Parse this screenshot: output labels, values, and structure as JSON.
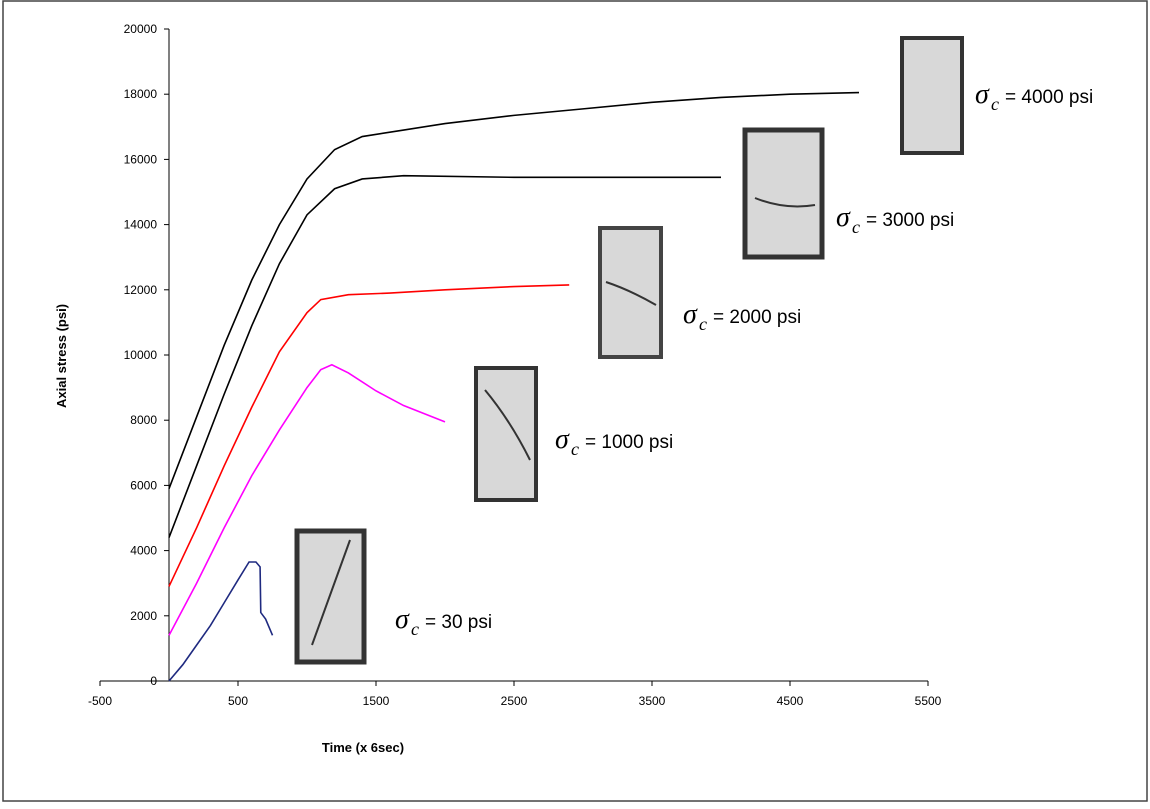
{
  "chart_data": {
    "type": "line",
    "xlabel": "Time (x 6sec)",
    "ylabel": "Axial stress (psi)",
    "label_symbol": "σ",
    "label_subscript": "c",
    "xlim": [
      -500,
      5500
    ],
    "xticks": [
      -500,
      500,
      1500,
      2500,
      3500,
      4500,
      5500
    ],
    "ylim": [
      0,
      20000
    ],
    "yticks": [
      0,
      2000,
      4000,
      6000,
      8000,
      10000,
      12000,
      14000,
      16000,
      18000,
      20000
    ],
    "series": [
      {
        "name": "= 4000 psi",
        "color": "#000000",
        "x": [
          0,
          200,
          400,
          600,
          800,
          1000,
          1200,
          1400,
          1700,
          2000,
          2500,
          3000,
          3500,
          4000,
          4500,
          5000
        ],
        "values": [
          5900,
          8100,
          10300,
          12300,
          14000,
          15400,
          16300,
          16700,
          16900,
          17100,
          17350,
          17550,
          17750,
          17900,
          18000,
          18050
        ]
      },
      {
        "name": "= 3000 psi",
        "color": "#000000",
        "x": [
          0,
          200,
          400,
          600,
          800,
          1000,
          1200,
          1400,
          1700,
          2500,
          4000
        ],
        "values": [
          4400,
          6600,
          8800,
          10900,
          12800,
          14300,
          15100,
          15400,
          15500,
          15450,
          15450
        ]
      },
      {
        "name": "= 2000 psi",
        "color": "#ff0000",
        "x": [
          0,
          200,
          400,
          600,
          800,
          1000,
          1100,
          1300,
          1600,
          2000,
          2500,
          2900
        ],
        "values": [
          2900,
          4700,
          6600,
          8400,
          10100,
          11300,
          11700,
          11850,
          11900,
          12000,
          12100,
          12150
        ]
      },
      {
        "name": "= 1000 psi",
        "color": "#ff00ff",
        "x": [
          0,
          200,
          400,
          600,
          800,
          1000,
          1100,
          1180,
          1300,
          1500,
          1700,
          2000
        ],
        "values": [
          1400,
          3000,
          4700,
          6300,
          7700,
          9000,
          9550,
          9700,
          9450,
          8900,
          8450,
          7950
        ]
      },
      {
        "name": "= 30 psi",
        "color": "#1f2a80",
        "x": [
          0,
          100,
          200,
          300,
          400,
          500,
          580,
          630,
          660,
          665,
          700,
          750
        ],
        "values": [
          0,
          500,
          1100,
          1700,
          2400,
          3100,
          3650,
          3650,
          3500,
          2100,
          1900,
          1400
        ]
      }
    ]
  }
}
